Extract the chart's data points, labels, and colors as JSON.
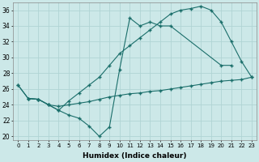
{
  "xlabel": "Humidex (Indice chaleur)",
  "xlim": [
    -0.5,
    23.5
  ],
  "ylim": [
    19.5,
    37
  ],
  "yticks": [
    20,
    22,
    24,
    26,
    28,
    30,
    32,
    34,
    36
  ],
  "xticks": [
    0,
    1,
    2,
    3,
    4,
    5,
    6,
    7,
    8,
    9,
    10,
    11,
    12,
    13,
    14,
    15,
    16,
    17,
    18,
    19,
    20,
    21,
    22,
    23
  ],
  "bg_color": "#cce8e8",
  "line_color": "#1a6e6a",
  "grid_color": "#b0d4d4",
  "line1": {
    "x": [
      0,
      1,
      2,
      3,
      4,
      5,
      6,
      7,
      8,
      9,
      10,
      11,
      12,
      13,
      14,
      15,
      20,
      21
    ],
    "y": [
      26.5,
      24.8,
      24.7,
      24.0,
      23.3,
      22.7,
      22.3,
      21.3,
      20.0,
      21.2,
      28.5,
      35.0,
      34.0,
      34.5,
      34.0,
      34.0,
      29.0,
      29.0
    ]
  },
  "line2": {
    "x": [
      0,
      1,
      2,
      3,
      4,
      5,
      6,
      7,
      8,
      9,
      10,
      11,
      12,
      13,
      14,
      15,
      16,
      17,
      18,
      19,
      20,
      21,
      22,
      23
    ],
    "y": [
      26.5,
      24.8,
      24.7,
      24.0,
      23.3,
      24.5,
      25.5,
      26.5,
      27.5,
      29.0,
      30.5,
      31.5,
      32.5,
      33.5,
      34.5,
      35.5,
      36.0,
      36.2,
      36.5,
      36.0,
      34.5,
      32.0,
      29.5,
      27.5
    ]
  },
  "line3": {
    "x": [
      1,
      2,
      3,
      4,
      5,
      6,
      7,
      8,
      9,
      10,
      11,
      12,
      13,
      14,
      15,
      16,
      17,
      18,
      19,
      20,
      21,
      22,
      23
    ],
    "y": [
      24.8,
      24.7,
      24.0,
      23.8,
      24.0,
      24.2,
      24.4,
      24.7,
      25.0,
      25.2,
      25.4,
      25.5,
      25.7,
      25.8,
      26.0,
      26.2,
      26.4,
      26.6,
      26.8,
      27.0,
      27.1,
      27.2,
      27.5
    ]
  }
}
